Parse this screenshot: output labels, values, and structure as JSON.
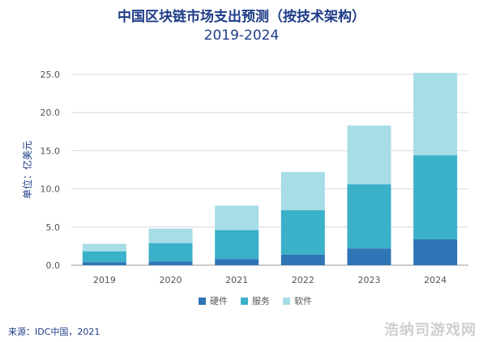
{
  "chart_data": {
    "type": "bar",
    "stacked": true,
    "title": "中国区块链市场支出预测（按技术架构）",
    "subtitle": "2019-2024",
    "ylabel": "单位：亿美元",
    "xlabel": "",
    "categories": [
      "2019",
      "2020",
      "2021",
      "2022",
      "2023",
      "2024"
    ],
    "ylim": [
      0,
      25
    ],
    "yticks": [
      "0.0",
      "5.0",
      "10.0",
      "15.0",
      "20.0",
      "25.0"
    ],
    "grid": true,
    "legend_position": "bottom",
    "series": [
      {
        "name": "硬件",
        "color": "#2e75b6",
        "values": [
          0.4,
          0.5,
          0.8,
          1.4,
          2.2,
          3.4
        ]
      },
      {
        "name": "服务",
        "color": "#3bb0c9",
        "values": [
          1.4,
          2.4,
          3.8,
          5.8,
          8.4,
          11.0
        ]
      },
      {
        "name": "软件",
        "color": "#a6dde6",
        "values": [
          1.0,
          1.9,
          3.2,
          5.0,
          7.7,
          10.8
        ]
      }
    ]
  },
  "source": "来源：IDC中国，2021",
  "watermark": "浩纳司游戏网"
}
